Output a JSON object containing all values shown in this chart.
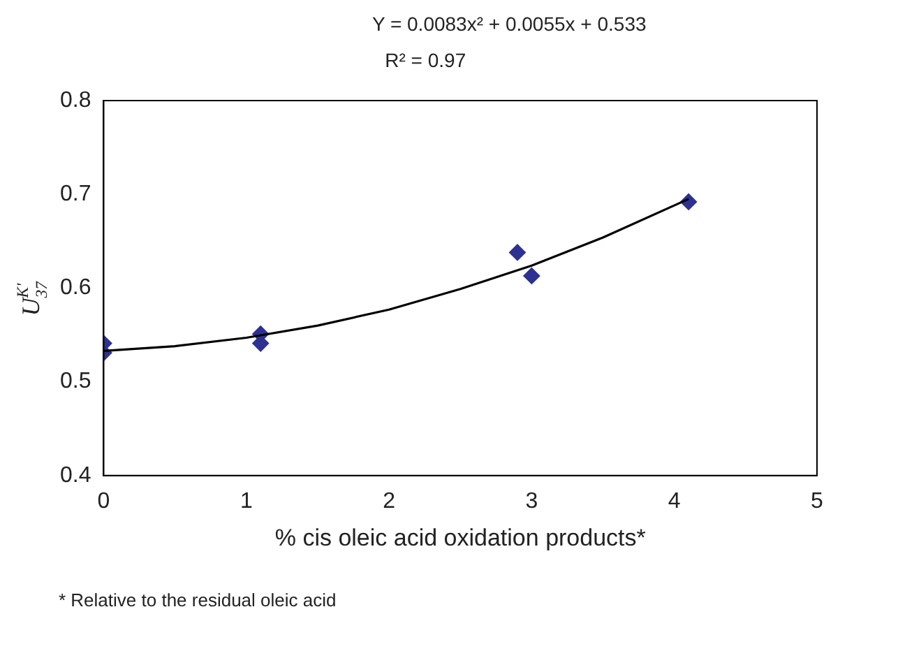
{
  "chart_data": {
    "type": "scatter",
    "title": "Y = 0.0083x² + 0.0055x + 0.533",
    "subtitle": "R² = 0.97",
    "xlabel": "% cis oleic acid oxidation products*",
    "ylabel": "U$^{K'}$$_{37}$",
    "annotations": [
      "* Relative to the residual oleic acid"
    ],
    "x": [
      0,
      0,
      1.1,
      1.1,
      2.9,
      3.0,
      4.1
    ],
    "values": [
      0.541,
      0.531,
      0.551,
      0.541,
      0.638,
      0.613,
      0.692
    ],
    "color": "#2e3192",
    "marker": "diamond",
    "series": [
      {
        "type": "line",
        "color": "#000000",
        "marker": "none",
        "line_style": "solid",
        "x": [
          0,
          0.5,
          1,
          1.5,
          2,
          2.5,
          3,
          3.5,
          4.1
        ],
        "values": [
          0.533,
          0.538,
          0.547,
          0.56,
          0.577,
          0.599,
          0.624,
          0.654,
          0.695
        ]
      }
    ],
    "xlim": [
      0,
      5
    ],
    "xticks": [
      0,
      1,
      2,
      3,
      4,
      5
    ],
    "ylim": [
      0.4,
      0.8
    ],
    "yticks": [
      0.4,
      0.5,
      0.6,
      0.7,
      0.8
    ],
    "grid": false,
    "legend": false
  }
}
